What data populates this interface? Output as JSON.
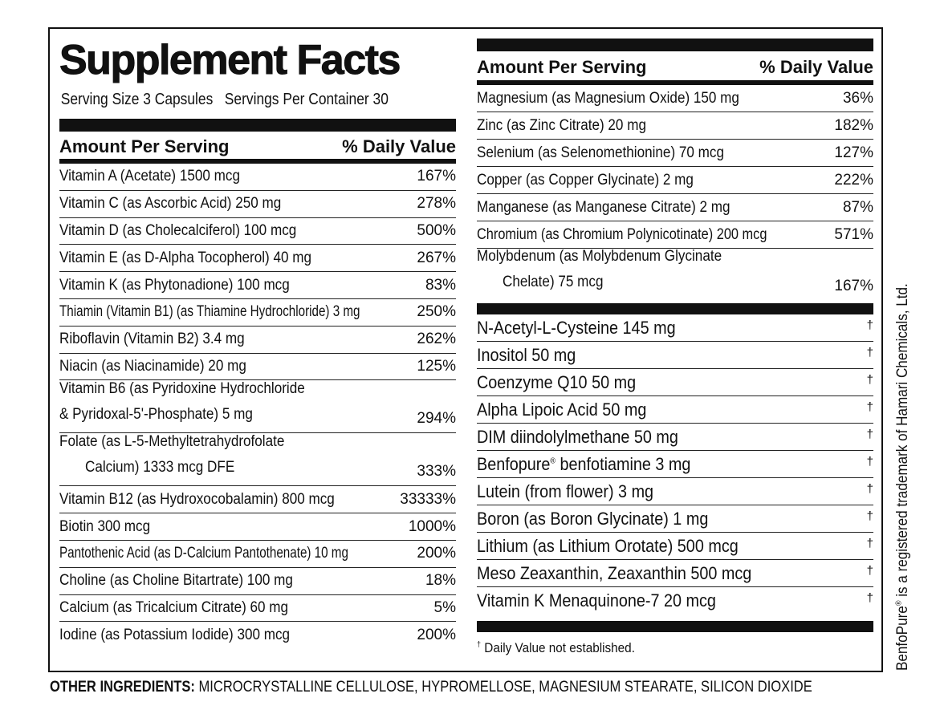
{
  "title": "Supplement Facts",
  "serving_size": "Serving Size 3 Capsules",
  "servings_per_container": "Servings Per Container 30",
  "header": {
    "amount": "Amount Per Serving",
    "dv": "% Daily Value"
  },
  "left_nutrients": [
    {
      "name": "Vitamin A (Acetate) 1500 mcg",
      "dv": "167%"
    },
    {
      "name": "Vitamin C (as Ascorbic Acid) 250 mg",
      "dv": "278%"
    },
    {
      "name": "Vitamin D (as Cholecalciferol) 100 mcg",
      "dv": "500%"
    },
    {
      "name": "Vitamin E (as D-Alpha Tocopherol) 40 mg",
      "dv": "267%"
    },
    {
      "name": "Vitamin K (as Phytonadione) 100 mcg",
      "dv": "83%"
    },
    {
      "name": "Thiamin (Vitamin B1) (as Thiamine Hydrochloride) 3 mg",
      "dv": "250%"
    },
    {
      "name": "Riboflavin (Vitamin B2) 3.4 mg",
      "dv": "262%"
    },
    {
      "name": "Niacin (as Niacinamide) 20 mg",
      "dv": "125%"
    }
  ],
  "b6": {
    "line1": "Vitamin B6 (as Pyridoxine Hydrochloride",
    "line2": "& Pyridoxal-5'-Phosphate) 5 mg",
    "dv": "294%"
  },
  "folate": {
    "line1": "Folate (as L-5-Methyltetrahydrofolate",
    "line2": "Calcium) 1333 mcg DFE",
    "dv": "333%"
  },
  "left_nutrients_2": [
    {
      "name": "Vitamin B12 (as Hydroxocobalamin) 800 mcg",
      "dv": "33333%"
    },
    {
      "name": "Biotin 300 mcg",
      "dv": "1000%"
    },
    {
      "name": "Pantothenic Acid (as D-Calcium Pantothenate) 10 mg",
      "dv": "200%"
    },
    {
      "name": "Choline (as Choline Bitartrate) 100 mg",
      "dv": "18%"
    },
    {
      "name": "Calcium (as Tricalcium Citrate) 60 mg",
      "dv": "5%"
    },
    {
      "name": "Iodine (as Potassium Iodide) 300 mcg",
      "dv": "200%"
    }
  ],
  "right_minerals": [
    {
      "name": "Magnesium (as Magnesium Oxide) 150 mg",
      "dv": "36%"
    },
    {
      "name": "Zinc (as Zinc Citrate) 20 mg",
      "dv": "182%"
    },
    {
      "name": "Selenium (as Selenomethionine) 70 mcg",
      "dv": "127%"
    },
    {
      "name": "Copper (as Copper Glycinate) 2 mg",
      "dv": "222%"
    },
    {
      "name": "Manganese (as Manganese Citrate) 2 mg",
      "dv": "87%"
    },
    {
      "name": "Chromium (as Chromium Polynicotinate) 200 mcg",
      "dv": "571%"
    }
  ],
  "molybdenum": {
    "line1": "Molybdenum (as Molybdenum Glycinate",
    "line2": "Chelate) 75 mcg",
    "dv": "167%"
  },
  "others": [
    {
      "name": "N-Acetyl-L-Cysteine 145 mg",
      "dv": "†"
    },
    {
      "name": "Inositol 50 mg",
      "dv": "†"
    },
    {
      "name": "Coenzyme Q10 50 mg",
      "dv": "†"
    },
    {
      "name": "Alpha Lipoic Acid 50 mg",
      "dv": "†"
    },
    {
      "name": "DIM diindolylmethane 50 mg",
      "dv": "†"
    },
    {
      "name": "Benfopure",
      "sup": "®",
      "rest": " benfotiamine 3 mg",
      "dv": "†"
    },
    {
      "name": "Lutein (from flower) 3 mg",
      "dv": "†"
    },
    {
      "name": "Boron (as Boron Glycinate) 1 mg",
      "dv": "†"
    },
    {
      "name": "Lithium (as Lithium Orotate) 500 mcg",
      "dv": "†"
    },
    {
      "name": "Meso Zeaxanthin, Zeaxanthin 500 mcg",
      "dv": "†"
    },
    {
      "name": "Vitamin K Menaquinone-7 20 mcg",
      "dv": "†"
    }
  ],
  "footnote_mark": "†",
  "footnote": "Daily Value not established.",
  "other_ingredients_label": "OTHER INGREDIENTS:",
  "other_ingredients": "MICROCRYSTALLINE CELLULOSE, HYPROMELLOSE, MAGNESIUM STEARATE, SILICON DIOXIDE",
  "trademark": {
    "brand": "BenfoPure",
    "reg": "®",
    "text": " is a registered trademark of Hamari Chemicals, Ltd."
  }
}
